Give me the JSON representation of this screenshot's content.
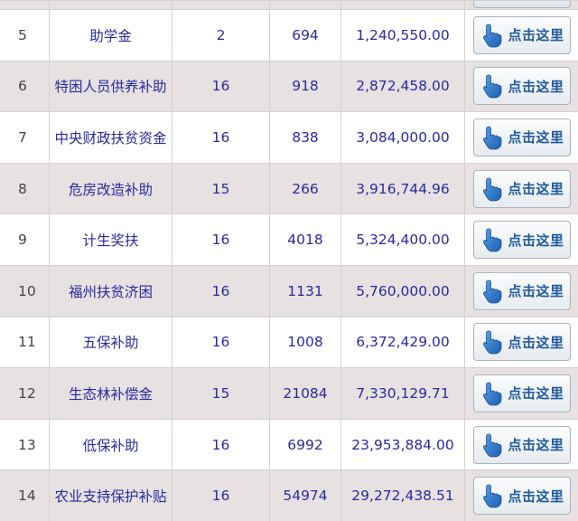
{
  "table": {
    "button_label": "点击这里",
    "rows": [
      {
        "idx": "5",
        "name": "助学金",
        "count": "2",
        "people": "694",
        "amount": "1,240,550.00"
      },
      {
        "idx": "6",
        "name": "特困人员供养补助",
        "count": "16",
        "people": "918",
        "amount": "2,872,458.00"
      },
      {
        "idx": "7",
        "name": "中央财政扶贫资金",
        "count": "16",
        "people": "838",
        "amount": "3,084,000.00"
      },
      {
        "idx": "8",
        "name": "危房改造补助",
        "count": "15",
        "people": "266",
        "amount": "3,916,744.96"
      },
      {
        "idx": "9",
        "name": "计生奖扶",
        "count": "16",
        "people": "4018",
        "amount": "5,324,400.00"
      },
      {
        "idx": "10",
        "name": "福州扶贫济困",
        "count": "16",
        "people": "1131",
        "amount": "5,760,000.00"
      },
      {
        "idx": "11",
        "name": "五保补助",
        "count": "16",
        "people": "1008",
        "amount": "6,372,429.00"
      },
      {
        "idx": "12",
        "name": "生态林补偿金",
        "count": "15",
        "people": "21084",
        "amount": "7,330,129.71"
      },
      {
        "idx": "13",
        "name": "低保补助",
        "count": "16",
        "people": "6992",
        "amount": "23,953,884.00"
      },
      {
        "idx": "14",
        "name": "农业支持保护补贴",
        "count": "16",
        "people": "54974",
        "amount": "29,272,438.51"
      }
    ]
  },
  "icons": {
    "button_icon": "pointing-hand-icon"
  },
  "colors": {
    "row_alt": "#e7e1e1",
    "link_text": "#2a2aa0",
    "button_text": "#1f5a9c"
  }
}
